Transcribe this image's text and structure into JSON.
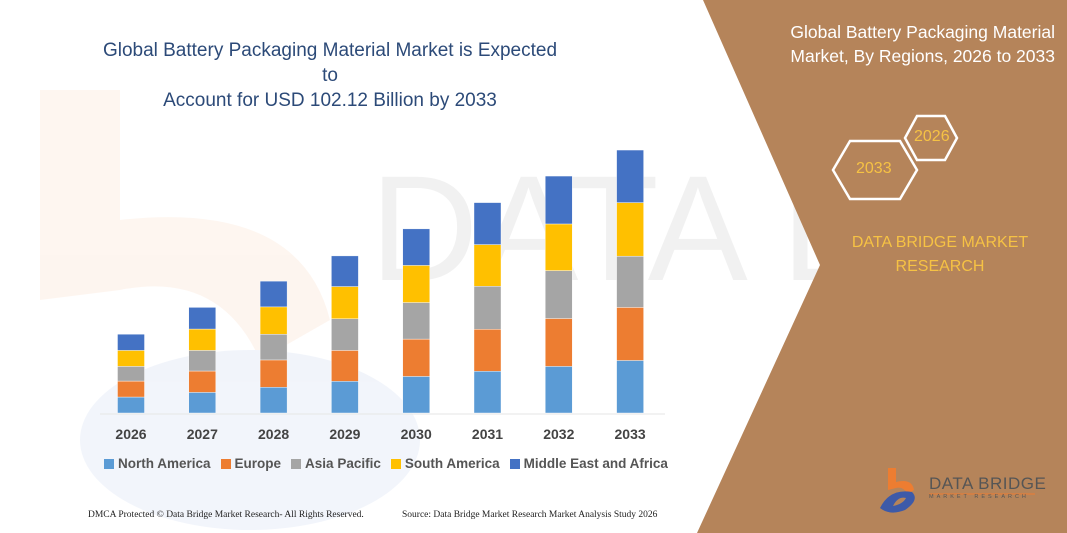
{
  "header": {
    "title_line1": "Global Battery Packaging Material Market is Expected to",
    "title_line2": "Account for USD 102.12 Billion by 2033"
  },
  "side_panel": {
    "title_line1": "Global Battery Packaging Material",
    "title_line2": "Market, By Regions, 2026 to 2033",
    "hex_year_start": "2026",
    "hex_year_end": "2033",
    "brand_line1": "DATA BRIDGE MARKET",
    "brand_line2": "RESEARCH",
    "panel_color": "#b5845a",
    "accent_color": "#f6c244"
  },
  "logo": {
    "name": "DATA BRIDGE",
    "sub": "MARKET RESEARCH"
  },
  "watermark": "DATA BRIDGE MARKET RESEARCH",
  "footer": {
    "left": "DMCA Protected © Data Bridge Market Research- All Rights Reserved.",
    "right": "Source: Data Bridge Market Research Market Analysis Study 2026"
  },
  "chart_data": {
    "type": "bar",
    "stacked": true,
    "title": "Global Battery Packaging Material Market is Expected to Account for USD 102.12 Billion by 2033",
    "categories": [
      "2026",
      "2027",
      "2028",
      "2029",
      "2030",
      "2031",
      "2032",
      "2033"
    ],
    "ylim": [
      0,
      102.12
    ],
    "grid": false,
    "legend": "bottom",
    "series": [
      {
        "name": "North America",
        "color": "#5b9bd5",
        "values": [
          6.2,
          8.0,
          10.0,
          12.3,
          14.2,
          16.2,
          18.1,
          20.4
        ]
      },
      {
        "name": "Europe",
        "color": "#ed7d31",
        "values": [
          6.2,
          8.3,
          10.6,
          12.0,
          14.5,
          16.3,
          18.6,
          20.6
        ]
      },
      {
        "name": "Asia Pacific",
        "color": "#a5a5a5",
        "values": [
          5.7,
          8.0,
          10.0,
          12.3,
          14.2,
          16.7,
          18.6,
          19.9
        ]
      },
      {
        "name": "South America",
        "color": "#ffc000",
        "values": [
          6.2,
          8.3,
          10.6,
          12.5,
          14.4,
          16.2,
          18.1,
          20.8
        ]
      },
      {
        "name": "Middle East and Africa",
        "color": "#4472c4",
        "values": [
          6.3,
          8.4,
          10.0,
          11.9,
          14.2,
          16.3,
          18.6,
          20.4
        ]
      }
    ]
  }
}
